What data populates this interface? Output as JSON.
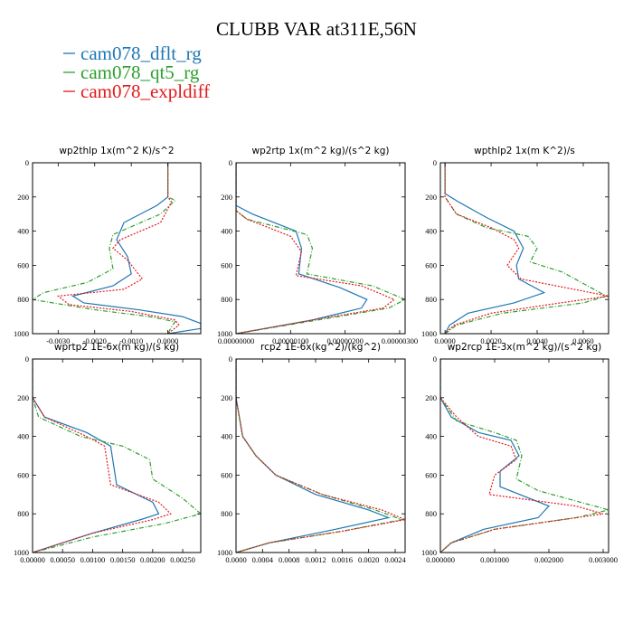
{
  "title": "CLUBB VAR at311E,56N",
  "colors": {
    "dflt": "#1f77b4",
    "qt5": "#2ca02c",
    "expl": "#e31a1c"
  },
  "legend": [
    {
      "label": "cam078_dflt_rg",
      "color": "#1f77b4"
    },
    {
      "label": "cam078_qt5_rg",
      "color": "#2ca02c"
    },
    {
      "label": "cam078_expldiff",
      "color": "#e31a1c"
    }
  ],
  "chart_data": [
    {
      "type": "line",
      "title": "wp2thlp  1x(m^2 K)/s^2",
      "xlim": [
        -0.0037,
        0.0009
      ],
      "ylim": [
        1000,
        0
      ],
      "yticks": [
        0,
        200,
        400,
        600,
        800,
        1000
      ],
      "ytick_labels": [
        "0",
        "200",
        "400",
        "600",
        "800",
        "1000"
      ],
      "xticks": [
        -0.003,
        -0.002,
        -0.001,
        0.0
      ],
      "xtick_labels": [
        "-0.0030",
        "-0.0020",
        "-0.0010",
        "0.0000"
      ],
      "series": [
        {
          "name": "cam078_dflt_rg",
          "style": "solid",
          "x": [
            0.0,
            0.0,
            -0.0003,
            -0.0012,
            -0.0014,
            -0.0011,
            -0.001,
            -0.0015,
            -0.0026,
            -0.0023,
            -0.0008,
            0.0004,
            0.0009,
            0.0009,
            0.0
          ],
          "y": [
            0,
            200,
            250,
            350,
            450,
            550,
            650,
            720,
            780,
            820,
            860,
            900,
            940,
            970,
            1000
          ]
        },
        {
          "name": "cam078_qt5_rg",
          "style": "dashdot",
          "x": [
            0.0,
            0.0,
            0.0002,
            -0.0002,
            -0.0015,
            -0.0016,
            -0.0015,
            -0.0022,
            -0.0034,
            -0.0037,
            -0.002,
            -0.0005,
            0.0002,
            0.0001,
            0.0
          ],
          "y": [
            0,
            200,
            220,
            300,
            420,
            500,
            620,
            700,
            760,
            800,
            860,
            900,
            930,
            960,
            1000
          ]
        },
        {
          "name": "cam078_expldiff",
          "style": "dotted",
          "x": [
            0.0,
            0.0,
            0.0001,
            -0.0002,
            -0.0013,
            -0.0015,
            -0.0011,
            -0.0007,
            -0.0012,
            -0.003,
            -0.0027,
            -0.001,
            0.0002,
            0.0003,
            0.0
          ],
          "y": [
            0,
            200,
            230,
            350,
            450,
            500,
            570,
            680,
            740,
            780,
            830,
            870,
            920,
            950,
            1000
          ]
        }
      ]
    },
    {
      "type": "line",
      "title": "wp2rtp  1x(m^2 kg)/(s^2 kg)",
      "xlim": [
        0,
        3.1e-06
      ],
      "ylim": [
        1000,
        0
      ],
      "yticks": [
        0,
        200,
        400,
        600,
        800,
        1000
      ],
      "ytick_labels": [
        "0",
        "200",
        "400",
        "600",
        "800",
        "1000"
      ],
      "xticks": [
        0,
        1e-06,
        2e-06,
        3e-06
      ],
      "xtick_labels": [
        "0.00000000",
        "0.00000100",
        "0.00000200",
        "0.00000300"
      ],
      "series": [
        {
          "name": "cam078_dflt_rg",
          "style": "solid",
          "x": [
            0.0,
            0.0,
            0.0,
            3e-07,
            1.1e-06,
            1.2e-06,
            1.15e-06,
            1.9e-06,
            2.4e-06,
            2.3e-06,
            1.4e-06,
            0.0
          ],
          "y": [
            0,
            200,
            250,
            300,
            400,
            500,
            650,
            730,
            800,
            850,
            920,
            1000
          ]
        },
        {
          "name": "cam078_qt5_rg",
          "style": "dashdot",
          "x": [
            0.0,
            0.0,
            0.0,
            2e-07,
            1.3e-06,
            1.4e-06,
            1.3e-06,
            2.5e-06,
            3.1e-06,
            2.8e-06,
            1.5e-06,
            0.0
          ],
          "y": [
            0,
            200,
            280,
            330,
            420,
            500,
            650,
            720,
            800,
            850,
            920,
            1000
          ]
        },
        {
          "name": "cam078_expldiff",
          "style": "dotted",
          "x": [
            0.0,
            0.0,
            0.0,
            2e-07,
            1e-06,
            1.2e-06,
            1.1e-06,
            2.3e-06,
            2.9e-06,
            2.7e-06,
            1.4e-06,
            0.0
          ],
          "y": [
            0,
            200,
            280,
            330,
            430,
            520,
            660,
            720,
            800,
            850,
            920,
            1000
          ]
        }
      ]
    },
    {
      "type": "line",
      "title": "wpthlp2  1x(m K^2)/s",
      "xlim": [
        -0.0002,
        0.0071
      ],
      "ylim": [
        1000,
        0
      ],
      "yticks": [
        0,
        200,
        400,
        600,
        800,
        1000
      ],
      "ytick_labels": [
        "0",
        "200",
        "400",
        "600",
        "800",
        "1000"
      ],
      "xticks": [
        0.0,
        0.002,
        0.004,
        0.006
      ],
      "xtick_labels": [
        "0.0000",
        "0.0020",
        "0.0040",
        "0.0060"
      ],
      "series": [
        {
          "name": "cam078_dflt_rg",
          "style": "solid",
          "x": [
            0.0,
            0.0,
            0.0006,
            0.0018,
            0.003,
            0.0034,
            0.0031,
            0.0032,
            0.0043,
            0.003,
            0.001,
            0.0002,
            0.0
          ],
          "y": [
            0,
            180,
            230,
            320,
            400,
            500,
            600,
            680,
            760,
            820,
            880,
            950,
            1000
          ]
        },
        {
          "name": "cam078_qt5_rg",
          "style": "dashdot",
          "x": [
            0.0,
            0.0,
            0.0005,
            0.0018,
            0.0036,
            0.004,
            0.0037,
            0.0051,
            0.007,
            0.006,
            0.0025,
            0.0005,
            0.0
          ],
          "y": [
            0,
            200,
            300,
            380,
            430,
            500,
            580,
            640,
            780,
            820,
            880,
            950,
            1000
          ]
        },
        {
          "name": "cam078_expldiff",
          "style": "dotted",
          "x": [
            0.0,
            0.0,
            0.0005,
            0.002,
            0.003,
            0.0032,
            0.0027,
            0.0033,
            0.0071,
            0.005,
            0.002,
            0.0004,
            0.0
          ],
          "y": [
            0,
            200,
            300,
            380,
            450,
            500,
            600,
            680,
            780,
            820,
            880,
            950,
            1000
          ]
        }
      ]
    },
    {
      "type": "line",
      "title": "wprtp2  1E-6x(m kg)/(s kg)",
      "xlim": [
        0,
        0.0028
      ],
      "ylim": [
        1000,
        0
      ],
      "yticks": [
        0,
        200,
        400,
        600,
        800,
        1000
      ],
      "ytick_labels": [
        "0",
        "200",
        "400",
        "600",
        "800",
        "1000"
      ],
      "xticks": [
        0,
        0.0005,
        0.001,
        0.0015,
        0.002,
        0.0025
      ],
      "xtick_labels": [
        "0.00000",
        "0.00050",
        "0.00100",
        "0.00150",
        "0.00200",
        "0.00250"
      ],
      "series": [
        {
          "name": "cam078_dflt_rg",
          "style": "solid",
          "x": [
            0.0,
            0.0,
            0.0002,
            0.0009,
            0.0013,
            0.00135,
            0.0014,
            0.002,
            0.0021,
            0.0018,
            0.001,
            0.0
          ],
          "y": [
            0,
            200,
            300,
            380,
            450,
            550,
            650,
            740,
            800,
            830,
            900,
            1000
          ]
        },
        {
          "name": "cam078_qt5_rg",
          "style": "dashdot",
          "x": [
            0.0,
            0.0,
            0.0001,
            0.0008,
            0.0015,
            0.00195,
            0.002,
            0.0025,
            0.0028,
            0.0022,
            0.001,
            0.0
          ],
          "y": [
            0,
            200,
            300,
            400,
            450,
            520,
            620,
            720,
            800,
            850,
            920,
            1000
          ]
        },
        {
          "name": "cam078_expldiff",
          "style": "dotted",
          "x": [
            0.0,
            0.0,
            0.0002,
            0.0009,
            0.0012,
            0.00125,
            0.0013,
            0.0021,
            0.0023,
            0.002,
            0.001,
            0.0
          ],
          "y": [
            0,
            200,
            300,
            400,
            450,
            550,
            650,
            740,
            800,
            830,
            900,
            1000
          ]
        }
      ]
    },
    {
      "type": "line",
      "title": "rcp2  1E-6x(kg^2)/(kg^2)",
      "xlim": [
        0,
        0.00255
      ],
      "ylim": [
        1000,
        0
      ],
      "yticks": [
        0,
        200,
        400,
        600,
        800,
        1000
      ],
      "ytick_labels": [
        "0",
        "200",
        "400",
        "600",
        "800",
        "1000"
      ],
      "xticks": [
        0,
        0.0004,
        0.0008,
        0.0012,
        0.0016,
        0.002,
        0.0024
      ],
      "xtick_labels": [
        "0.0000",
        "0.0004",
        "0.0008",
        "0.0012",
        "0.0016",
        "0.0020",
        "0.0024"
      ],
      "series": [
        {
          "name": "cam078_dflt_rg",
          "style": "solid",
          "x": [
            0.0,
            0.0,
            0.0001,
            0.0003,
            0.0006,
            0.0012,
            0.002,
            0.0023,
            0.0015,
            0.0005,
            0.0
          ],
          "y": [
            0,
            200,
            400,
            500,
            600,
            700,
            780,
            820,
            880,
            950,
            1000
          ]
        },
        {
          "name": "cam078_qt5_rg",
          "style": "dashdot",
          "x": [
            0.0,
            0.0,
            0.0001,
            0.0003,
            0.0006,
            0.0013,
            0.0021,
            0.0025,
            0.0016,
            0.0005,
            0.0
          ],
          "y": [
            0,
            200,
            400,
            500,
            600,
            700,
            780,
            830,
            890,
            950,
            1000
          ]
        },
        {
          "name": "cam078_expldiff",
          "style": "dotted",
          "x": [
            0.0,
            0.0,
            0.0001,
            0.0003,
            0.0006,
            0.0013,
            0.0022,
            0.00255,
            0.0016,
            0.0005,
            0.0
          ],
          "y": [
            0,
            200,
            400,
            500,
            600,
            700,
            780,
            830,
            890,
            950,
            1000
          ]
        }
      ]
    },
    {
      "type": "line",
      "title": "wp2rcp  1E-3x(m^2 kg)/(s^2 kg)",
      "xlim": [
        0,
        0.0031
      ],
      "ylim": [
        1000,
        0
      ],
      "yticks": [
        0,
        200,
        400,
        600,
        800,
        1000
      ],
      "ytick_labels": [
        "0",
        "200",
        "400",
        "600",
        "800",
        "1000"
      ],
      "xticks": [
        0,
        0.001,
        0.002,
        0.003
      ],
      "xtick_labels": [
        "0.000000",
        "0.001000",
        "0.002000",
        "0.003000"
      ],
      "series": [
        {
          "name": "cam078_dflt_rg",
          "style": "solid",
          "x": [
            0.0,
            0.0,
            0.0002,
            0.0007,
            0.0013,
            0.00145,
            0.0011,
            0.0011,
            0.002,
            0.0018,
            0.0008,
            0.0002,
            0.0
          ],
          "y": [
            0,
            200,
            300,
            380,
            420,
            500,
            580,
            660,
            760,
            820,
            880,
            950,
            1000
          ]
        },
        {
          "name": "cam078_qt5_rg",
          "style": "dashdot",
          "x": [
            0.0,
            0.0,
            0.0003,
            0.001,
            0.0014,
            0.0015,
            0.0014,
            0.0018,
            0.0031,
            0.0025,
            0.001,
            0.0002,
            0.0
          ],
          "y": [
            0,
            200,
            320,
            380,
            420,
            500,
            620,
            680,
            780,
            820,
            880,
            950,
            1000
          ]
        },
        {
          "name": "cam078_expldiff",
          "style": "dotted",
          "x": [
            0.0,
            0.0,
            0.0003,
            0.0007,
            0.0013,
            0.0014,
            0.001,
            0.0009,
            0.0025,
            0.003,
            0.001,
            0.0002,
            0.0
          ],
          "y": [
            0,
            200,
            300,
            400,
            450,
            520,
            600,
            700,
            760,
            800,
            880,
            950,
            1000
          ]
        }
      ]
    }
  ]
}
